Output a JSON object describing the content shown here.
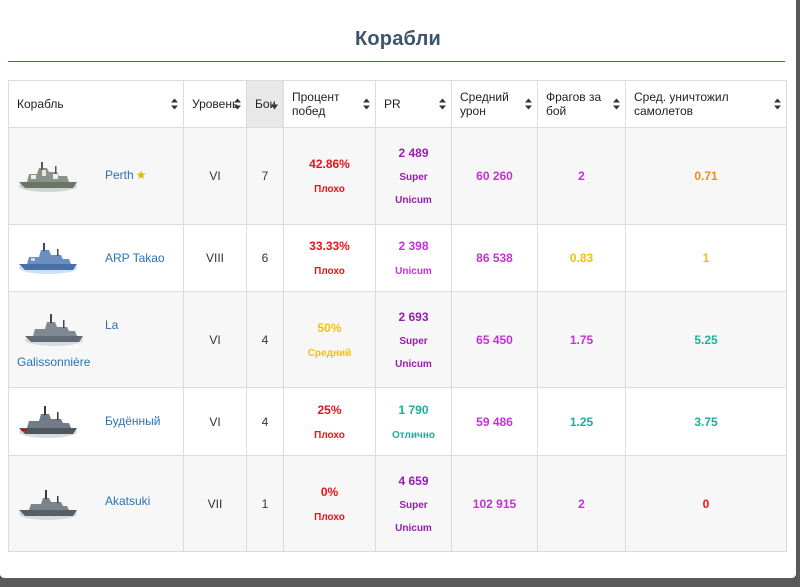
{
  "title": "Корабли",
  "columns": [
    {
      "label": "Корабль"
    },
    {
      "label": "Уровень"
    },
    {
      "label": "Бои"
    },
    {
      "label": "Процент побед"
    },
    {
      "label": "PR"
    },
    {
      "label": "Средний урон"
    },
    {
      "label": "Фрагов за бой"
    },
    {
      "label": "Сред. уничтожил самолетов"
    }
  ],
  "colors": {
    "bad": "#e8141b",
    "average": "#f3c10c",
    "good": "#1aaf9b",
    "great": "#1ab3a2",
    "unicum": "#9b1ab4",
    "purple": "#c233d6",
    "orange": "#f08a12",
    "link": "#2a72b5"
  },
  "rows": [
    {
      "ship": "Perth",
      "star": "★",
      "tier": "VI",
      "battles": "7",
      "winrate": "42.86%",
      "winrate_label": "Плохо",
      "pr": "2 489",
      "pr_label_1": "Super",
      "pr_label_2": "Unicum",
      "avg_damage": "60 260",
      "frags": "2",
      "planes": "0.71"
    },
    {
      "ship": "ARP Takao",
      "tier": "VIII",
      "battles": "6",
      "winrate": "33.33%",
      "winrate_label": "Плохо",
      "pr": "2 398",
      "pr_label_1": "Unicum",
      "avg_damage": "86 538",
      "frags": "0.83",
      "planes": "1"
    },
    {
      "ship_line1": "La",
      "ship_line2": "Galissonnière",
      "tier": "VI",
      "battles": "4",
      "winrate": "50%",
      "winrate_label": "Средний",
      "pr": "2 693",
      "pr_label_1": "Super",
      "pr_label_2": "Unicum",
      "avg_damage": "65 450",
      "frags": "1.75",
      "planes": "5.25"
    },
    {
      "ship": "Будённый",
      "tier": "VI",
      "battles": "4",
      "winrate": "25%",
      "winrate_label": "Плохо",
      "pr": "1 790",
      "pr_label_1": "Отлично",
      "avg_damage": "59 486",
      "frags": "1.25",
      "planes": "3.75"
    },
    {
      "ship": "Akatsuki",
      "tier": "VII",
      "battles": "1",
      "winrate": "0%",
      "winrate_label": "Плохо",
      "pr": "4 659",
      "pr_label_1": "Super",
      "pr_label_2": "Unicum",
      "avg_damage": "102 915",
      "frags": "2",
      "planes": "0"
    }
  ]
}
